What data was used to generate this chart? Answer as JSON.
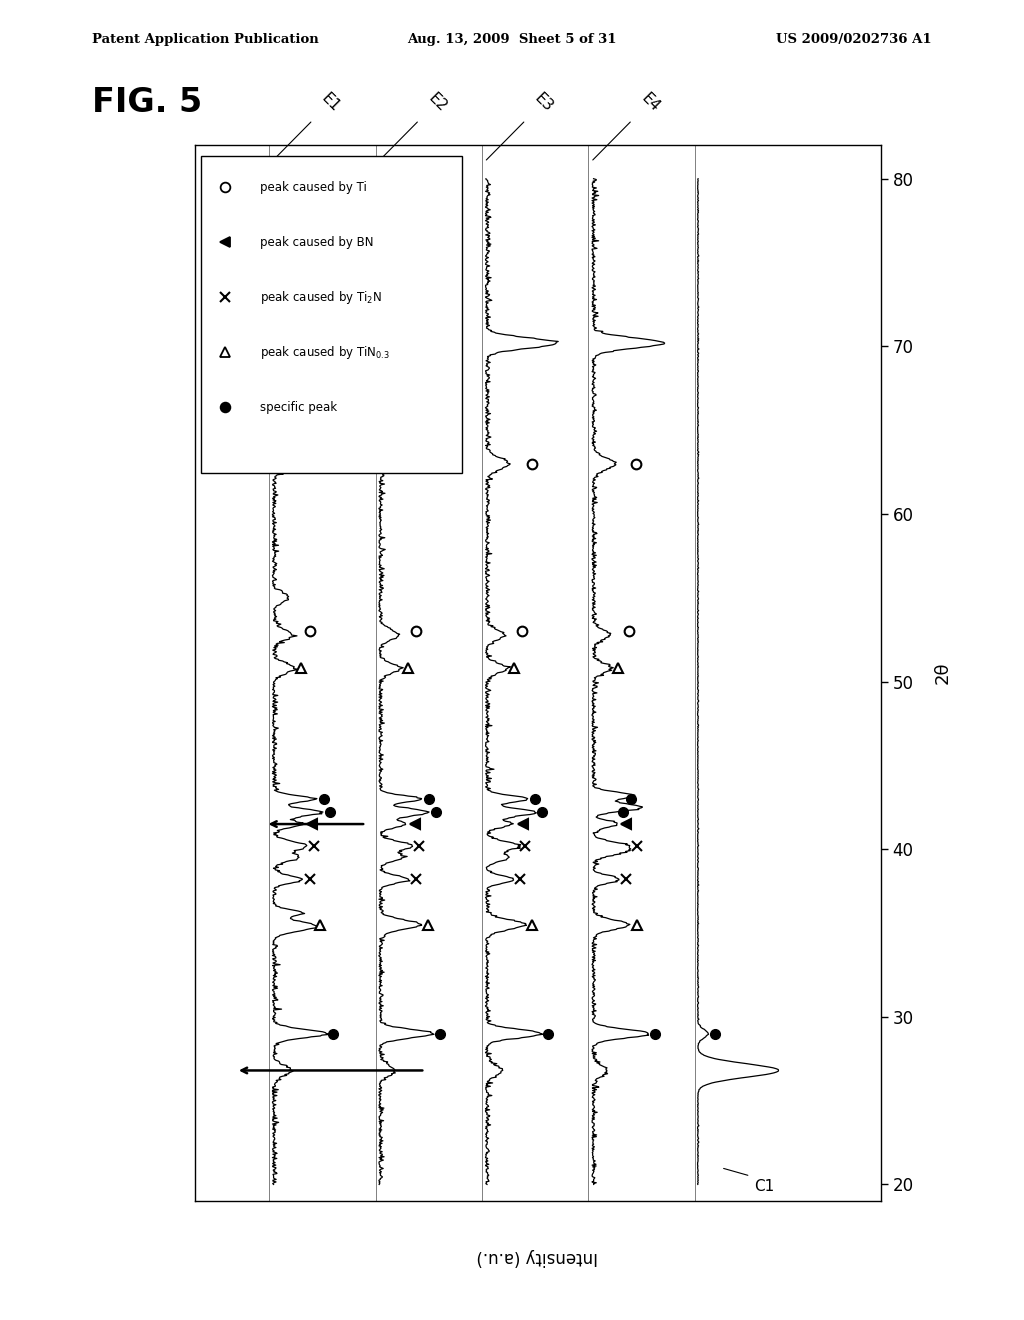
{
  "header_left": "Patent Application Publication",
  "header_center": "Aug. 13, 2009  Sheet 5 of 31",
  "header_right": "US 2009/0202736 A1",
  "fig_label": "FIG. 5",
  "theta_min": 20,
  "theta_max": 80,
  "theta_ticks": [
    20,
    30,
    40,
    50,
    60,
    70,
    80
  ],
  "series_labels": [
    "E1",
    "E2",
    "E3",
    "E4",
    "C1"
  ],
  "intensity_label": "Intensity (a.u.)",
  "theta_label": "2θ",
  "legend_entries": [
    {
      "marker": "o",
      "face": "white",
      "label": "peak caused by Ti"
    },
    {
      "marker": "<",
      "face": "black",
      "label": "peak caused by BN"
    },
    {
      "marker": "x",
      "face": null,
      "label": "peak caused by Ti$_2$N"
    },
    {
      "marker": "^",
      "face": "white",
      "label": "peak caused by TiN$_{0.3}$"
    },
    {
      "marker": "o",
      "face": "black",
      "label": "specific peak"
    }
  ],
  "seed": 42,
  "baselines": {
    "E1": 0.65,
    "E2": 1.55,
    "E3": 2.45,
    "E4": 3.35,
    "C1": 4.25
  },
  "intensity_scale": 0.78,
  "xlim": [
    0.0,
    5.8
  ],
  "ylim": [
    19,
    82
  ]
}
